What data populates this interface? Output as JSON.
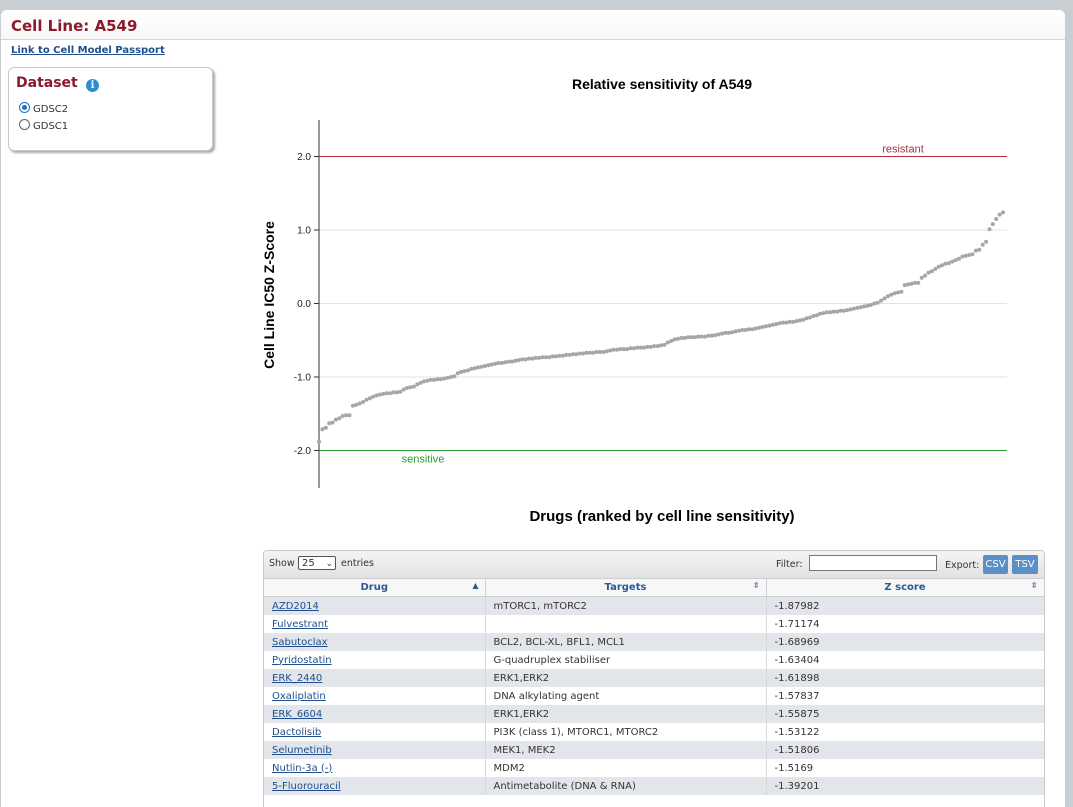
{
  "page": {
    "title": "Cell Line: A549",
    "passport_link": "Link to Cell Model Passport"
  },
  "dataset": {
    "title": "Dataset",
    "options": [
      {
        "label": "GDSC2",
        "checked": true
      },
      {
        "label": "GDSC1",
        "checked": false
      }
    ]
  },
  "colors": {
    "title_red": "#8b1a2b",
    "resistant_line": "#b03040",
    "sensitive_line": "#2e9a2e",
    "point": "#a6a6a6",
    "button_blue": "#5b8fc7",
    "link_blue": "#1f4f8f"
  },
  "chart_data": {
    "type": "scatter",
    "title": "Relative sensitivity of A549",
    "xlabel": "Drugs (ranked by cell line sensitivity)",
    "ylabel": "Cell Line IC50 Z-Score",
    "ylim": [
      -2.5,
      2.5
    ],
    "yticks": [
      "2.0",
      "1.0",
      "0.0",
      "-1.0",
      "-2.0"
    ],
    "ytick_values": [
      2.0,
      1.0,
      0.0,
      -1.0,
      -2.0
    ],
    "grid": true,
    "reference_lines": [
      {
        "label": "resistant",
        "y": 2.0,
        "color": "#b03040"
      },
      {
        "label": "sensitive",
        "y": -2.0,
        "color": "#2e9a2e"
      }
    ],
    "series": [
      {
        "values": [
          -1.88,
          -1.71,
          -1.69,
          -1.63,
          -1.62,
          -1.58,
          -1.56,
          -1.53,
          -1.52,
          -1.52,
          -1.39,
          -1.38,
          -1.36,
          -1.34,
          -1.31,
          -1.29,
          -1.27,
          -1.25,
          -1.24,
          -1.23,
          -1.22,
          -1.22,
          -1.21,
          -1.21,
          -1.2,
          -1.17,
          -1.15,
          -1.14,
          -1.13,
          -1.1,
          -1.08,
          -1.06,
          -1.05,
          -1.04,
          -1.04,
          -1.03,
          -1.03,
          -1.02,
          -1.01,
          -1.0,
          -0.99,
          -0.95,
          -0.93,
          -0.92,
          -0.91,
          -0.89,
          -0.88,
          -0.87,
          -0.86,
          -0.85,
          -0.84,
          -0.83,
          -0.82,
          -0.81,
          -0.81,
          -0.8,
          -0.79,
          -0.79,
          -0.78,
          -0.77,
          -0.76,
          -0.76,
          -0.75,
          -0.75,
          -0.74,
          -0.74,
          -0.73,
          -0.73,
          -0.73,
          -0.72,
          -0.72,
          -0.71,
          -0.71,
          -0.7,
          -0.7,
          -0.69,
          -0.69,
          -0.68,
          -0.68,
          -0.67,
          -0.67,
          -0.67,
          -0.66,
          -0.66,
          -0.66,
          -0.65,
          -0.64,
          -0.63,
          -0.63,
          -0.62,
          -0.62,
          -0.62,
          -0.61,
          -0.61,
          -0.6,
          -0.6,
          -0.6,
          -0.59,
          -0.59,
          -0.58,
          -0.58,
          -0.57,
          -0.56,
          -0.53,
          -0.51,
          -0.49,
          -0.48,
          -0.47,
          -0.47,
          -0.46,
          -0.46,
          -0.46,
          -0.45,
          -0.45,
          -0.45,
          -0.44,
          -0.44,
          -0.43,
          -0.42,
          -0.41,
          -0.4,
          -0.4,
          -0.39,
          -0.38,
          -0.37,
          -0.36,
          -0.36,
          -0.35,
          -0.35,
          -0.34,
          -0.33,
          -0.32,
          -0.31,
          -0.3,
          -0.29,
          -0.28,
          -0.27,
          -0.26,
          -0.26,
          -0.25,
          -0.25,
          -0.24,
          -0.23,
          -0.22,
          -0.2,
          -0.19,
          -0.17,
          -0.16,
          -0.14,
          -0.13,
          -0.12,
          -0.12,
          -0.11,
          -0.11,
          -0.1,
          -0.1,
          -0.09,
          -0.08,
          -0.07,
          -0.06,
          -0.05,
          -0.04,
          -0.03,
          -0.02,
          0.0,
          0.01,
          0.04,
          0.07,
          0.1,
          0.12,
          0.14,
          0.15,
          0.16,
          0.25,
          0.26,
          0.27,
          0.28,
          0.28,
          0.35,
          0.38,
          0.42,
          0.44,
          0.47,
          0.5,
          0.52,
          0.54,
          0.55,
          0.57,
          0.59,
          0.61,
          0.64,
          0.65,
          0.66,
          0.67,
          0.72,
          0.73,
          0.8,
          0.84,
          1.01,
          1.08,
          1.15,
          1.21,
          1.24
        ]
      }
    ]
  },
  "table": {
    "toolbar": {
      "show_label": "Show",
      "page_size": "25",
      "entries_label": "entries",
      "filter_label": "Filter:",
      "filter_value": "",
      "export_label": "Export:",
      "csv_label": "CSV",
      "tsv_label": "TSV"
    },
    "columns": [
      "Drug",
      "Targets",
      "Z score"
    ],
    "rows": [
      {
        "drug": "AZD2014",
        "targets": "mTORC1, mTORC2",
        "z": "-1.87982"
      },
      {
        "drug": "Fulvestrant",
        "targets": "",
        "z": "-1.71174"
      },
      {
        "drug": "Sabutoclax",
        "targets": "BCL2, BCL-XL, BFL1, MCL1",
        "z": "-1.68969"
      },
      {
        "drug": "Pyridostatin",
        "targets": "G-quadruplex stabiliser",
        "z": "-1.63404"
      },
      {
        "drug": "ERK_2440",
        "targets": "ERK1,ERK2",
        "z": "-1.61898"
      },
      {
        "drug": "Oxaliplatin",
        "targets": "DNA alkylating agent",
        "z": "-1.57837"
      },
      {
        "drug": "ERK_6604",
        "targets": "ERK1,ERK2",
        "z": "-1.55875"
      },
      {
        "drug": "Dactolisib",
        "targets": "PI3K (class 1), MTORC1, MTORC2",
        "z": "-1.53122"
      },
      {
        "drug": "Selumetinib",
        "targets": "MEK1, MEK2",
        "z": "-1.51806"
      },
      {
        "drug": "Nutlin-3a (-)",
        "targets": "MDM2",
        "z": "-1.5169"
      },
      {
        "drug": "5-Fluorouracil",
        "targets": "Antimetabolite (DNA & RNA)",
        "z": "-1.39201"
      }
    ]
  }
}
